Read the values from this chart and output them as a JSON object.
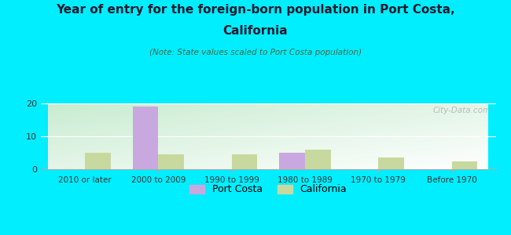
{
  "title_line1": "Year of entry for the foreign-born population in Port Costa,",
  "title_line2": "California",
  "subtitle": "(Note: State values scaled to Port Costa population)",
  "categories": [
    "2010 or later",
    "2000 to 2009",
    "1990 to 1999",
    "1980 to 1989",
    "1970 to 1979",
    "Before 1970"
  ],
  "port_costa": [
    0,
    19,
    0,
    5,
    0,
    0
  ],
  "california": [
    5,
    4.5,
    4.5,
    6,
    3.5,
    2.5
  ],
  "port_costa_color": "#c9a8e0",
  "california_color": "#c8d9a0",
  "ylim": [
    0,
    20
  ],
  "yticks": [
    0,
    10,
    20
  ],
  "bar_width": 0.35,
  "bg_color": "#00eeff",
  "plot_bg_color_topleft": "#c8ecd0",
  "plot_bg_color_bottomright": "#ffffff",
  "title_color": "#1a1a2e",
  "subtitle_color": "#446644",
  "watermark": "City-Data.com",
  "legend_port_costa": "Port Costa",
  "legend_california": "California"
}
